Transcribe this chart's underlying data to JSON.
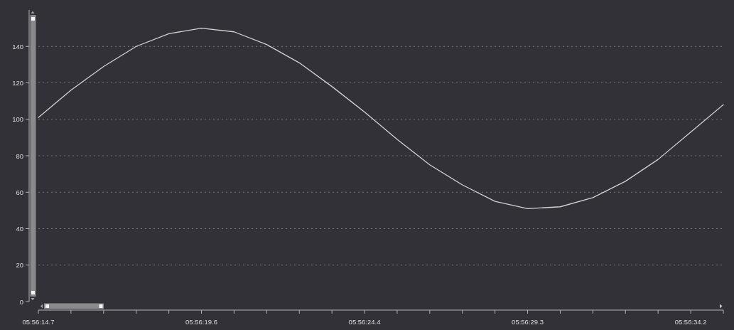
{
  "chart_data": {
    "type": "line",
    "categories": [
      "05:56:14.7",
      null,
      null,
      null,
      null,
      "05:56:19.6",
      null,
      null,
      null,
      null,
      "05:56:24.4",
      null,
      null,
      null,
      null,
      "05:56:29.3",
      null,
      null,
      null,
      null,
      "05:56:34.2",
      null
    ],
    "values": [
      101,
      116,
      129,
      140,
      147,
      150,
      148,
      141,
      131,
      118,
      104,
      89,
      75,
      64,
      55,
      51,
      52,
      57,
      66,
      78,
      93,
      108
    ],
    "color": "#d2d2d4",
    "ylim": [
      0,
      160
    ],
    "yticks": [
      0,
      20,
      40,
      60,
      80,
      100,
      120,
      140
    ],
    "grid": "y"
  }
}
